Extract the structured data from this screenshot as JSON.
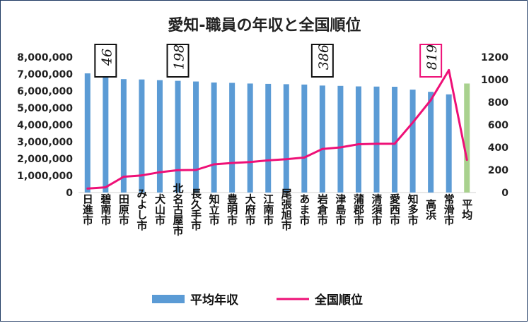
{
  "chart_data": {
    "type": "bar",
    "title": "愛知-職員の年収と全国順位",
    "categories": [
      "日進市",
      "碧南市",
      "田原市",
      "みよし市",
      "犬山市",
      "北名古屋市",
      "長久手市",
      "知立市",
      "豊明市",
      "大府市",
      "江南市",
      "尾張旭市",
      "あま市",
      "岩倉市",
      "津島市",
      "蒲郡市",
      "清須市",
      "愛西市",
      "知多市",
      "高浜",
      "常滑市",
      "平均"
    ],
    "series": [
      {
        "name": "平均年収",
        "axis": "left",
        "color": "#5b9bd5",
        "highlight_color": "#a9d18e",
        "values": [
          7040000,
          7000000,
          6700000,
          6680000,
          6640000,
          6600000,
          6560000,
          6500000,
          6480000,
          6440000,
          6420000,
          6400000,
          6380000,
          6320000,
          6300000,
          6270000,
          6260000,
          6250000,
          6080000,
          5950000,
          5800000,
          6440000
        ]
      },
      {
        "name": "全国順位",
        "axis": "right",
        "type": "line",
        "color": "#ee1077",
        "values": [
          35,
          46,
          140,
          152,
          180,
          198,
          200,
          250,
          262,
          270,
          285,
          295,
          310,
          386,
          400,
          428,
          432,
          432,
          620,
          819,
          1085,
          290
        ]
      }
    ],
    "y_left": {
      "min": 0,
      "max": 8000000,
      "ticks": [
        "0",
        "1,000,000",
        "2,000,000",
        "3,000,000",
        "4,000,000",
        "5,000,000",
        "6,000,000",
        "7,000,000",
        "8,000,000"
      ]
    },
    "y_right": {
      "min": 0,
      "max": 1200,
      "ticks": [
        "0",
        "200",
        "400",
        "600",
        "800",
        "1000",
        "1200"
      ]
    },
    "callouts": [
      {
        "category_index": 1,
        "text": "46",
        "border": "#111111"
      },
      {
        "category_index": 5,
        "text": "198",
        "border": "#111111"
      },
      {
        "category_index": 13,
        "text": "386",
        "border": "#111111"
      },
      {
        "category_index": 19,
        "text": "819",
        "border": "#ee1077"
      }
    ],
    "legend_position": "bottom"
  }
}
